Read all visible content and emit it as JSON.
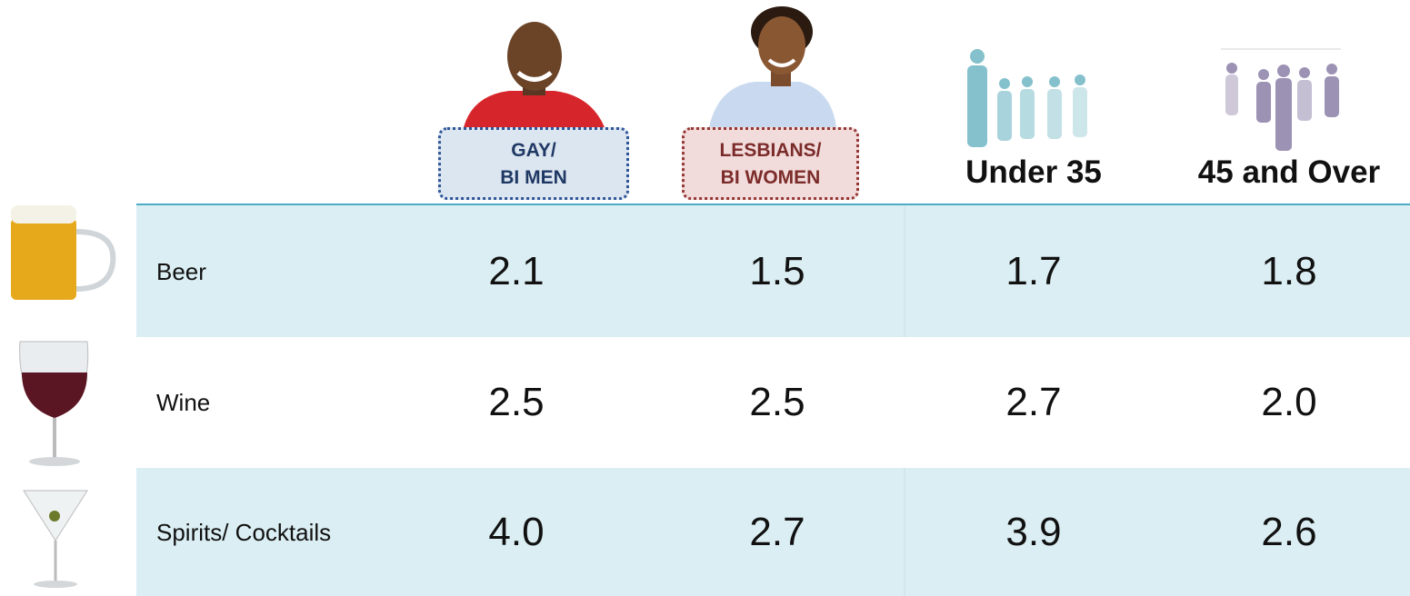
{
  "table": {
    "columns": [
      {
        "lines": [
          "GAY/",
          "BI MEN"
        ]
      },
      {
        "lines": [
          "LESBIANS/",
          "BI WOMEN"
        ]
      },
      {
        "lines": [
          "Under 35"
        ]
      },
      {
        "lines": [
          "45 and Over"
        ]
      }
    ],
    "rows": [
      {
        "label": "Beer",
        "cells": [
          "2.1",
          "1.5",
          "1.7",
          "1.8"
        ]
      },
      {
        "label": "Wine",
        "cells": [
          "2.5",
          "2.5",
          "2.7",
          "2.0"
        ]
      },
      {
        "label": "Spirits/ Cocktails",
        "cells": [
          "4.0",
          "2.7",
          "3.9",
          "2.6"
        ]
      }
    ]
  }
}
